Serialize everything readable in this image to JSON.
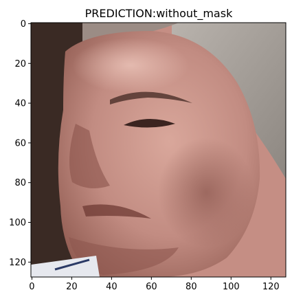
{
  "chart_data": {
    "type": "image",
    "title": "PREDICTION:without_mask",
    "image_width": 128,
    "image_height": 128,
    "x_ticks": [
      0,
      20,
      40,
      60,
      80,
      100,
      120
    ],
    "y_ticks": [
      0,
      20,
      40,
      60,
      80,
      100,
      120
    ],
    "xlim": [
      -0.5,
      127.5
    ],
    "ylim": [
      127.5,
      -0.5
    ],
    "grid": false,
    "image_content": "close-up face photograph"
  },
  "colors": {
    "axes_frame": "#000000",
    "background": "#ffffff",
    "skin_base": "#c48f86",
    "skin_shadow": "#8e5a50",
    "skin_highlight": "#e2b6aa",
    "hair_grey": "#a8a39d",
    "dark_bg": "#2a1f1b"
  }
}
